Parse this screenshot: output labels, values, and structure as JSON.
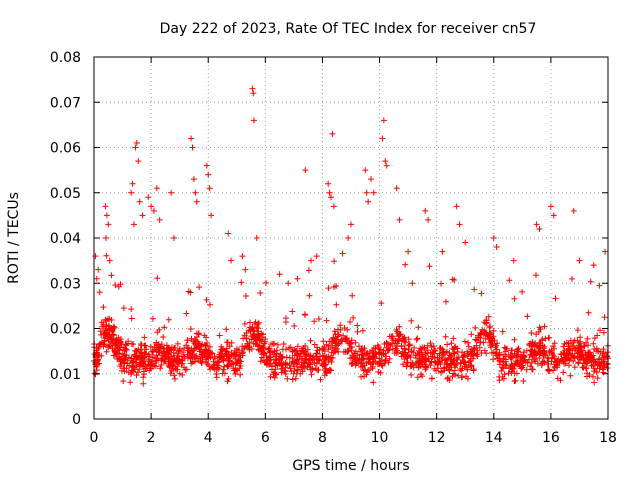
{
  "chart_data": {
    "type": "scatter",
    "title": "Day 222 of 2023, Rate Of TEC Index for receiver cn57",
    "xlabel": "GPS time / hours",
    "ylabel": "ROTI / TECUs",
    "xlim": [
      0,
      18
    ],
    "ylim": [
      0,
      0.08
    ],
    "x_ticks": [
      0,
      2,
      4,
      6,
      8,
      10,
      12,
      14,
      16,
      18
    ],
    "x_tick_labels": [
      "0",
      "2",
      "4",
      "6",
      "8",
      "10",
      "12",
      "14",
      "16",
      "18"
    ],
    "y_ticks": [
      0,
      0.01,
      0.02,
      0.03,
      0.04,
      0.05,
      0.06,
      0.07,
      0.08
    ],
    "y_tick_labels": [
      "0",
      "0.01",
      "0.02",
      "0.03",
      "0.04",
      "0.05",
      "0.06",
      "0.07",
      "0.08"
    ],
    "grid": true,
    "marker": "+",
    "series_color": "#ff0000",
    "series": [
      {
        "name": "ROTI",
        "note": "dense noisy cloud; baseline ~0.008-0.02, frequent spikes to 0.03-0.05",
        "points": [
          [
            0.05,
            0.036
          ],
          [
            0.1,
            0.031
          ],
          [
            0.15,
            0.033
          ],
          [
            0.2,
            0.028
          ],
          [
            0.4,
            0.047
          ],
          [
            0.45,
            0.045
          ],
          [
            0.5,
            0.043
          ],
          [
            0.42,
            0.04
          ],
          [
            0.55,
            0.035
          ],
          [
            1.3,
            0.05
          ],
          [
            1.35,
            0.052
          ],
          [
            1.45,
            0.06
          ],
          [
            1.5,
            0.061
          ],
          [
            1.55,
            0.057
          ],
          [
            1.4,
            0.043
          ],
          [
            1.6,
            0.048
          ],
          [
            1.7,
            0.045
          ],
          [
            1.9,
            0.049
          ],
          [
            2.0,
            0.047
          ],
          [
            2.1,
            0.046
          ],
          [
            2.2,
            0.051
          ],
          [
            2.3,
            0.044
          ],
          [
            2.7,
            0.05
          ],
          [
            2.8,
            0.04
          ],
          [
            3.4,
            0.062
          ],
          [
            3.45,
            0.06
          ],
          [
            3.5,
            0.053
          ],
          [
            3.55,
            0.05
          ],
          [
            3.6,
            0.048
          ],
          [
            3.95,
            0.056
          ],
          [
            4.0,
            0.054
          ],
          [
            4.05,
            0.051
          ],
          [
            4.1,
            0.045
          ],
          [
            4.7,
            0.041
          ],
          [
            4.8,
            0.035
          ],
          [
            5.2,
            0.036
          ],
          [
            5.3,
            0.033
          ],
          [
            5.55,
            0.073
          ],
          [
            5.58,
            0.072
          ],
          [
            5.6,
            0.066
          ],
          [
            5.7,
            0.04
          ],
          [
            6.5,
            0.032
          ],
          [
            6.8,
            0.03
          ],
          [
            7.4,
            0.055
          ],
          [
            7.6,
            0.035
          ],
          [
            7.8,
            0.036
          ],
          [
            8.2,
            0.052
          ],
          [
            8.25,
            0.05
          ],
          [
            8.3,
            0.049
          ],
          [
            8.35,
            0.063
          ],
          [
            8.4,
            0.047
          ],
          [
            8.9,
            0.04
          ],
          [
            9.0,
            0.043
          ],
          [
            9.5,
            0.055
          ],
          [
            9.55,
            0.05
          ],
          [
            9.6,
            0.048
          ],
          [
            9.7,
            0.053
          ],
          [
            9.8,
            0.05
          ],
          [
            10.1,
            0.062
          ],
          [
            10.15,
            0.066
          ],
          [
            10.2,
            0.057
          ],
          [
            10.25,
            0.056
          ],
          [
            10.6,
            0.051
          ],
          [
            10.7,
            0.044
          ],
          [
            11.0,
            0.037
          ],
          [
            11.6,
            0.046
          ],
          [
            11.7,
            0.044
          ],
          [
            12.2,
            0.037
          ],
          [
            12.7,
            0.047
          ],
          [
            12.8,
            0.043
          ],
          [
            13.0,
            0.039
          ],
          [
            14.0,
            0.04
          ],
          [
            14.1,
            0.038
          ],
          [
            14.7,
            0.035
          ],
          [
            15.5,
            0.043
          ],
          [
            15.6,
            0.042
          ],
          [
            16.0,
            0.047
          ],
          [
            16.1,
            0.045
          ],
          [
            16.8,
            0.046
          ],
          [
            17.0,
            0.035
          ],
          [
            17.5,
            0.034
          ],
          [
            17.9,
            0.037
          ]
        ]
      }
    ]
  }
}
